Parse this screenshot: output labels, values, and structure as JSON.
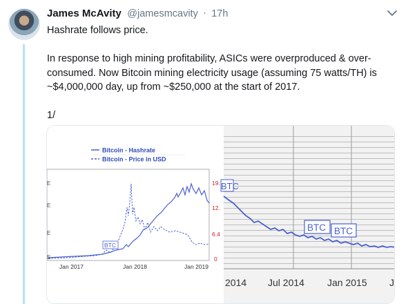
{
  "tweet": {
    "author_name": "James McAvity",
    "author_handle": "@jamesmcavity",
    "separator": "·",
    "time_ago": "17h",
    "paragraphs": [
      "Hashrate follows price.",
      "In response to high mining profitability, ASICs were overproduced & over-consumed. Now Bitcoin mining electricity usage (assuming 75 watts/TH) is ~$4,000,000 day, up from ~$250,000 at the start of 2017.",
      "1/"
    ]
  },
  "icons": {
    "avatar": "avatar-photo",
    "menu": "chevron-down-icon"
  },
  "colors": {
    "line": "#4a5fd0",
    "text": "#14171a",
    "muted": "#657786",
    "thread": "#b8dff7",
    "axis_right": "#cc2222"
  },
  "chart_data": [
    {
      "type": "line",
      "title": "",
      "series": [
        {
          "name": "Bitcoin - Hashrate",
          "style": "solid"
        },
        {
          "name": "Bitcoin - Price in USD",
          "style": "dashed"
        }
      ],
      "x_ticks": [
        "Jan 2017",
        "Jan 2018",
        "Jan 2019"
      ],
      "y_right_ticks": [
        "19.",
        "12.",
        "6.4",
        "0"
      ],
      "watermark": "BTC",
      "legend": "top"
    },
    {
      "type": "line",
      "title": "",
      "x_ticks": [
        "2014",
        "Jul 2014",
        "Jan 2015",
        "J"
      ],
      "watermarks": [
        "BTC",
        "BTC",
        "BTC"
      ],
      "grid": true
    }
  ]
}
